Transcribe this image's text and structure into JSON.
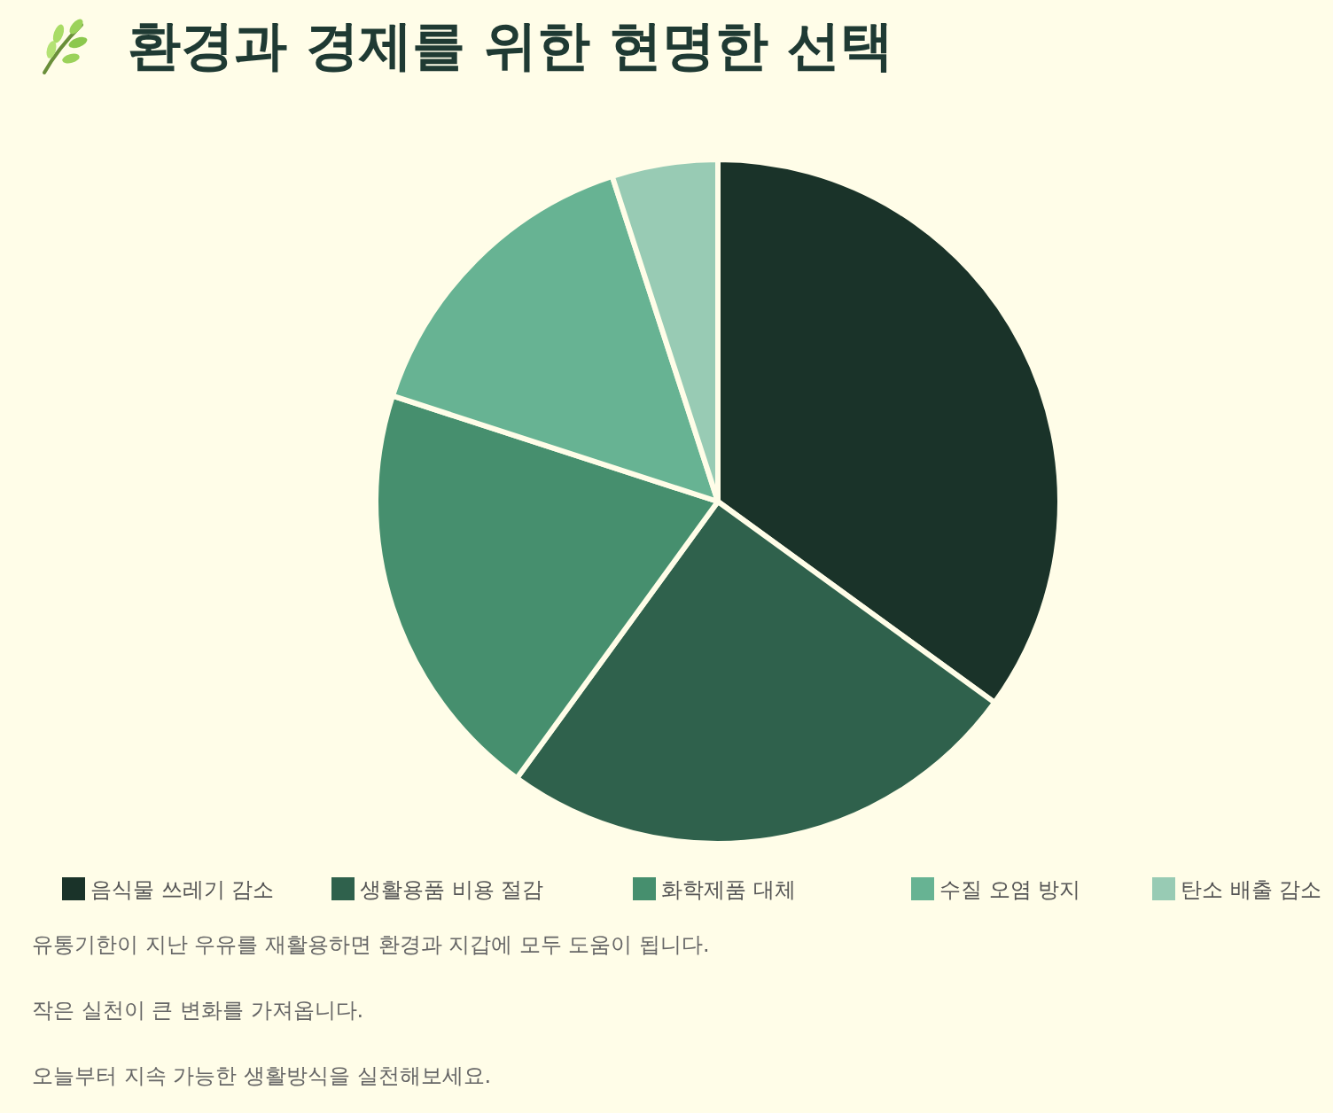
{
  "chart_data": {
    "type": "pie",
    "title": "환경과 경제를 위한 현명한 선택",
    "categories": [
      "음식물 쓰레기 감소",
      "생활용품 비용 절감",
      "화학제품 대체",
      "수질 오염 방지",
      "탄소 배출 감소"
    ],
    "values": [
      35,
      25,
      20,
      15,
      5
    ],
    "colors": [
      "#1a3329",
      "#2f614c",
      "#468f6e",
      "#67b393",
      "#98cbb4"
    ],
    "legend": "bottom",
    "annotations": [
      "유통기한이 지난 우유를 재활용하면 환경과 지갑에 모두 도움이 됩니다.",
      "작은 실천이 큰 변화를 가져옵니다.",
      "오늘부터 지속 가능한 생활방식을 실천해보세요."
    ]
  }
}
